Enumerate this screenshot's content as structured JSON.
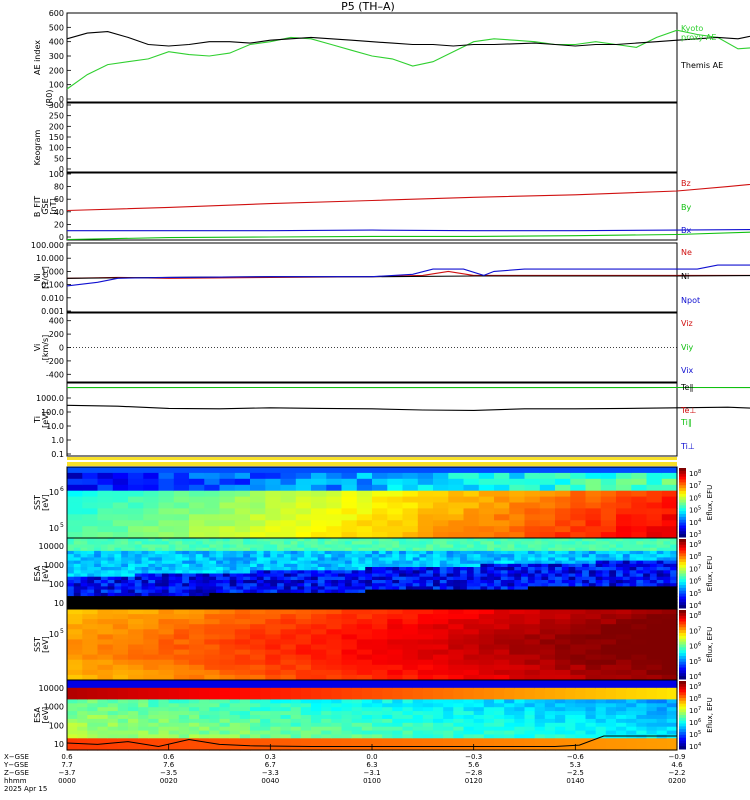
{
  "title": "P5 (TH–A)",
  "date_label": "2025 Apr 15",
  "colors": {
    "red": "#d01010",
    "green": "#10c010",
    "blue": "#1010d0",
    "black": "#000000",
    "kyoto_green": "#30d030"
  },
  "chart_data": [
    {
      "type": "line",
      "panel": "ae",
      "ylabel": "AE index",
      "ylim": [
        0,
        600
      ],
      "yticks": [
        "600",
        "500",
        "400",
        "300",
        "200",
        "100",
        "0"
      ],
      "series": [
        {
          "name": "Kyoto proxy AE",
          "color": "#30d030",
          "x": [
            0,
            4,
            8,
            12,
            16,
            20,
            24,
            28,
            32,
            36,
            40,
            44,
            48,
            52,
            56,
            60,
            64,
            68,
            72,
            76,
            80,
            84,
            88,
            92,
            96,
            100,
            104,
            108,
            112,
            116,
            120,
            124,
            128,
            132,
            136,
            140,
            144,
            148,
            152,
            156,
            160,
            164,
            168,
            172,
            176,
            180,
            184,
            188,
            192,
            196,
            200
          ],
          "y": [
            70,
            170,
            240,
            260,
            280,
            330,
            310,
            300,
            320,
            380,
            400,
            430,
            420,
            380,
            340,
            300,
            280,
            230,
            260,
            330,
            400,
            420,
            410,
            400,
            380,
            380,
            400,
            380,
            360,
            430,
            480,
            450,
            430,
            350,
            360,
            450,
            500,
            480,
            430,
            300,
            280,
            300,
            380,
            440,
            430,
            450,
            480,
            530,
            500,
            550,
            560
          ]
        },
        {
          "name": "Themis AE",
          "color": "#000000",
          "x": [
            0,
            4,
            8,
            12,
            16,
            20,
            24,
            28,
            32,
            36,
            40,
            44,
            48,
            52,
            56,
            60,
            64,
            68,
            72,
            76,
            80,
            84,
            88,
            92,
            96,
            100,
            104,
            108,
            112,
            116,
            120,
            124,
            128,
            132,
            136,
            140,
            144,
            148,
            152,
            156,
            160,
            164,
            168,
            172,
            176,
            180,
            184,
            188,
            192,
            196,
            200
          ],
          "y": [
            420,
            460,
            470,
            430,
            380,
            370,
            380,
            400,
            400,
            390,
            410,
            420,
            430,
            420,
            410,
            400,
            390,
            380,
            380,
            370,
            380,
            380,
            385,
            390,
            380,
            370,
            380,
            380,
            390,
            400,
            410,
            420,
            430,
            420,
            450,
            430,
            420,
            410,
            430,
            450,
            470,
            510,
            540,
            560,
            540,
            520,
            500,
            480,
            470,
            460,
            470
          ]
        }
      ]
    },
    {
      "type": "heatmap",
      "panel": "keogram",
      "ylabel": "Keogram",
      "ylabel2": "(R0)",
      "ylim": [
        0,
        300
      ],
      "yticks": [
        "300",
        "250",
        "200",
        "150",
        "100",
        "50",
        "0"
      ],
      "empty": true
    },
    {
      "type": "line",
      "panel": "bfield",
      "ylabel": "B_FIT",
      "ylabel2": "GSE",
      "ylabel3": "[nT]",
      "ylim": [
        0,
        100
      ],
      "yticks": [
        "100",
        "80",
        "60",
        "40",
        "20",
        "0"
      ],
      "series": [
        {
          "name": "Bz",
          "color": "#d01010",
          "x": [
            0,
            20,
            40,
            60,
            80,
            100,
            120,
            130,
            140,
            146,
            150
          ],
          "y": [
            42,
            47,
            53,
            58,
            63,
            67,
            73,
            80,
            88,
            96,
            97
          ]
        },
        {
          "name": "By",
          "color": "#10c010",
          "x": [
            0,
            20,
            40,
            60,
            80,
            100,
            120,
            140,
            160,
            180,
            200
          ],
          "y": [
            -4,
            -1,
            0,
            1,
            1,
            2,
            4,
            9,
            16,
            23,
            31
          ]
        },
        {
          "name": "Bx",
          "color": "#1010d0",
          "x": [
            0,
            20,
            40,
            60,
            80,
            100,
            120,
            140,
            160,
            180,
            200
          ],
          "y": [
            10,
            10,
            10,
            11,
            10,
            10,
            11,
            12,
            13,
            14,
            15
          ]
        }
      ]
    },
    {
      "type": "line",
      "panel": "density",
      "ylabel": "Ni",
      "ylabel2": "[1/cc]",
      "log": true,
      "ylim": [
        0.001,
        100
      ],
      "yticks": [
        "100.000",
        "10.000",
        "1.000",
        "0.100",
        "0.010",
        "0.001"
      ],
      "series": [
        {
          "name": "Ne",
          "color": "#d01010",
          "x": [
            0,
            10,
            20,
            40,
            60,
            70,
            75,
            80,
            90,
            100,
            110,
            120,
            140,
            152,
            158,
            164,
            170,
            180,
            200
          ],
          "y": [
            0.3,
            0.35,
            0.3,
            0.35,
            0.4,
            0.5,
            1.0,
            0.5,
            0.5,
            0.5,
            0.5,
            0.5,
            0.5,
            0.45,
            0.2,
            0.1,
            0.08,
            0.07,
            0.09
          ]
        },
        {
          "name": "Ni",
          "color": "#000000",
          "x": [
            0,
            20,
            40,
            60,
            80,
            100,
            120,
            140,
            160,
            180,
            200
          ],
          "y": [
            0.3,
            0.35,
            0.4,
            0.4,
            0.45,
            0.45,
            0.45,
            0.5,
            0.55,
            0.55,
            0.55
          ]
        },
        {
          "name": "Npot",
          "color": "#1010d0",
          "x": [
            0,
            6,
            10,
            20,
            40,
            60,
            68,
            72,
            78,
            82,
            84,
            90,
            100,
            110,
            124,
            128,
            140,
            148,
            152,
            156,
            162,
            170,
            180,
            200
          ],
          "y": [
            0.08,
            0.15,
            0.3,
            0.35,
            0.4,
            0.4,
            0.6,
            1.5,
            1.5,
            0.5,
            1.0,
            1.5,
            1.5,
            1.5,
            1.5,
            3.0,
            3.0,
            3.0,
            1.0,
            0.3,
            0.05,
            0.04,
            0.04,
            0.05
          ]
        }
      ]
    },
    {
      "type": "line",
      "panel": "velocity",
      "ylabel": "Vi",
      "ylabel2": "[km/s]",
      "ylim": [
        -500,
        500
      ],
      "yticks": [
        "400",
        "200",
        "0",
        "-200",
        "-400"
      ],
      "series": [
        {
          "name": "Viz",
          "color": "#d01010",
          "x": [],
          "y": []
        },
        {
          "name": "Viy",
          "color": "#10c010",
          "x": [],
          "y": []
        },
        {
          "name": "Vix",
          "color": "#1010d0",
          "x": [],
          "y": []
        }
      ]
    },
    {
      "type": "line",
      "panel": "temperature",
      "ylabel": "Ti",
      "ylabel2": "[eV]",
      "log": true,
      "ylim": [
        0.1,
        10000
      ],
      "yticks": [
        "1000.0",
        "100.0",
        "10.0",
        "1.0",
        "0.1"
      ],
      "series": [
        {
          "name": "Te∥",
          "color": "#000000",
          "x": [],
          "y": []
        },
        {
          "name": "Te⊥",
          "color": "#d01010",
          "x": [],
          "y": []
        },
        {
          "name": "Ti∥",
          "color": "#10c010",
          "x": [
            0,
            40,
            80,
            120,
            160,
            200
          ],
          "y": [
            5500,
            5600,
            5500,
            5600,
            5500,
            5600
          ]
        },
        {
          "name": "Ti⊥",
          "color": "#1010d0",
          "x": [],
          "y": []
        },
        {
          "name": "Ti",
          "color": "#000000",
          "x": [
            0,
            10,
            20,
            30,
            40,
            50,
            60,
            70,
            80,
            90,
            100,
            110,
            120,
            130,
            136,
            140,
            145,
            150,
            160,
            180,
            200
          ],
          "y": [
            300,
            260,
            180,
            170,
            200,
            180,
            170,
            140,
            130,
            170,
            170,
            180,
            200,
            220,
            180,
            230,
            300,
            900,
            1100,
            1000,
            1050
          ]
        }
      ]
    },
    {
      "type": "heatmap",
      "panel": "sst_ion",
      "ylabel": "SST",
      "ylabel2": "[eV]",
      "ytick_label": "10",
      "ytick_sup": [
        "6",
        "5"
      ],
      "cbar_ticks": [
        "8",
        "7",
        "6",
        "5",
        "4",
        "3"
      ],
      "cbar_label": "Eflux, EFU"
    },
    {
      "type": "heatmap",
      "panel": "esa_electron",
      "ylabel": "ESA",
      "ylabel2": "[eV]",
      "yticks": [
        "10000",
        "1000",
        "100",
        "10"
      ],
      "cbar_ticks": [
        "9",
        "8",
        "7",
        "6",
        "5",
        "4"
      ],
      "cbar_label": "Eflux, EFU"
    },
    {
      "type": "heatmap",
      "panel": "sst_electron",
      "ylabel": "SST",
      "ylabel2": "[eV]",
      "ytick_label": "10",
      "ytick_sup": [
        "5"
      ],
      "cbar_ticks": [
        "8",
        "7",
        "6",
        "5",
        "4"
      ],
      "cbar_label": "Eflux, EFU"
    },
    {
      "type": "heatmap",
      "panel": "esa_ion",
      "ylabel": "ESA",
      "ylabel2": "[eV]",
      "yticks": [
        "10000",
        "1000",
        "100",
        "10"
      ],
      "cbar_ticks": [
        "9",
        "8",
        "7",
        "6",
        "5",
        "4"
      ],
      "cbar_label": "Eflux, EFU"
    }
  ],
  "xaxis": {
    "row_labels": [
      "X−GSE",
      "Y−GSE",
      "Z−GSE",
      "hhmm",
      "2025 Apr 15"
    ],
    "ticks": [
      {
        "x": 0,
        "vals": [
          "0.6",
          "7.7",
          "−3.7",
          "0000"
        ]
      },
      {
        "x": 40,
        "vals": [
          "0.6",
          "7.6",
          "−3.5",
          "0020"
        ]
      },
      {
        "x": 80,
        "vals": [
          "0.3",
          "6.7",
          "−3.3",
          "0040"
        ]
      },
      {
        "x": 120,
        "vals": [
          "0.0",
          "6.3",
          "−3.1",
          "0100"
        ]
      },
      {
        "x": 160,
        "vals": [
          "−0.3",
          "5.6",
          "−2.8",
          "0120"
        ]
      },
      {
        "x": 200,
        "vals": [
          "−0.6",
          "5.3",
          "−2.5",
          "0140"
        ]
      },
      {
        "x": 240,
        "vals": [
          "−0.9",
          "4.6",
          "−2.2",
          "0200"
        ]
      }
    ]
  },
  "legend_labels": {
    "kyoto": "Kyoto",
    "proxy": "proxy AE",
    "themis": "Themis AE",
    "bz": "Bz",
    "by": "By",
    "bx": "Bx",
    "ne": "Ne",
    "ni": "Ni",
    "npot": "Npot",
    "viz": "Viz",
    "viy": "Viy",
    "vix": "Vix",
    "tepar": "Te∥",
    "teperp": "Te⊥",
    "tipar": "Ti∥",
    "tiperp": "Ti⊥"
  }
}
